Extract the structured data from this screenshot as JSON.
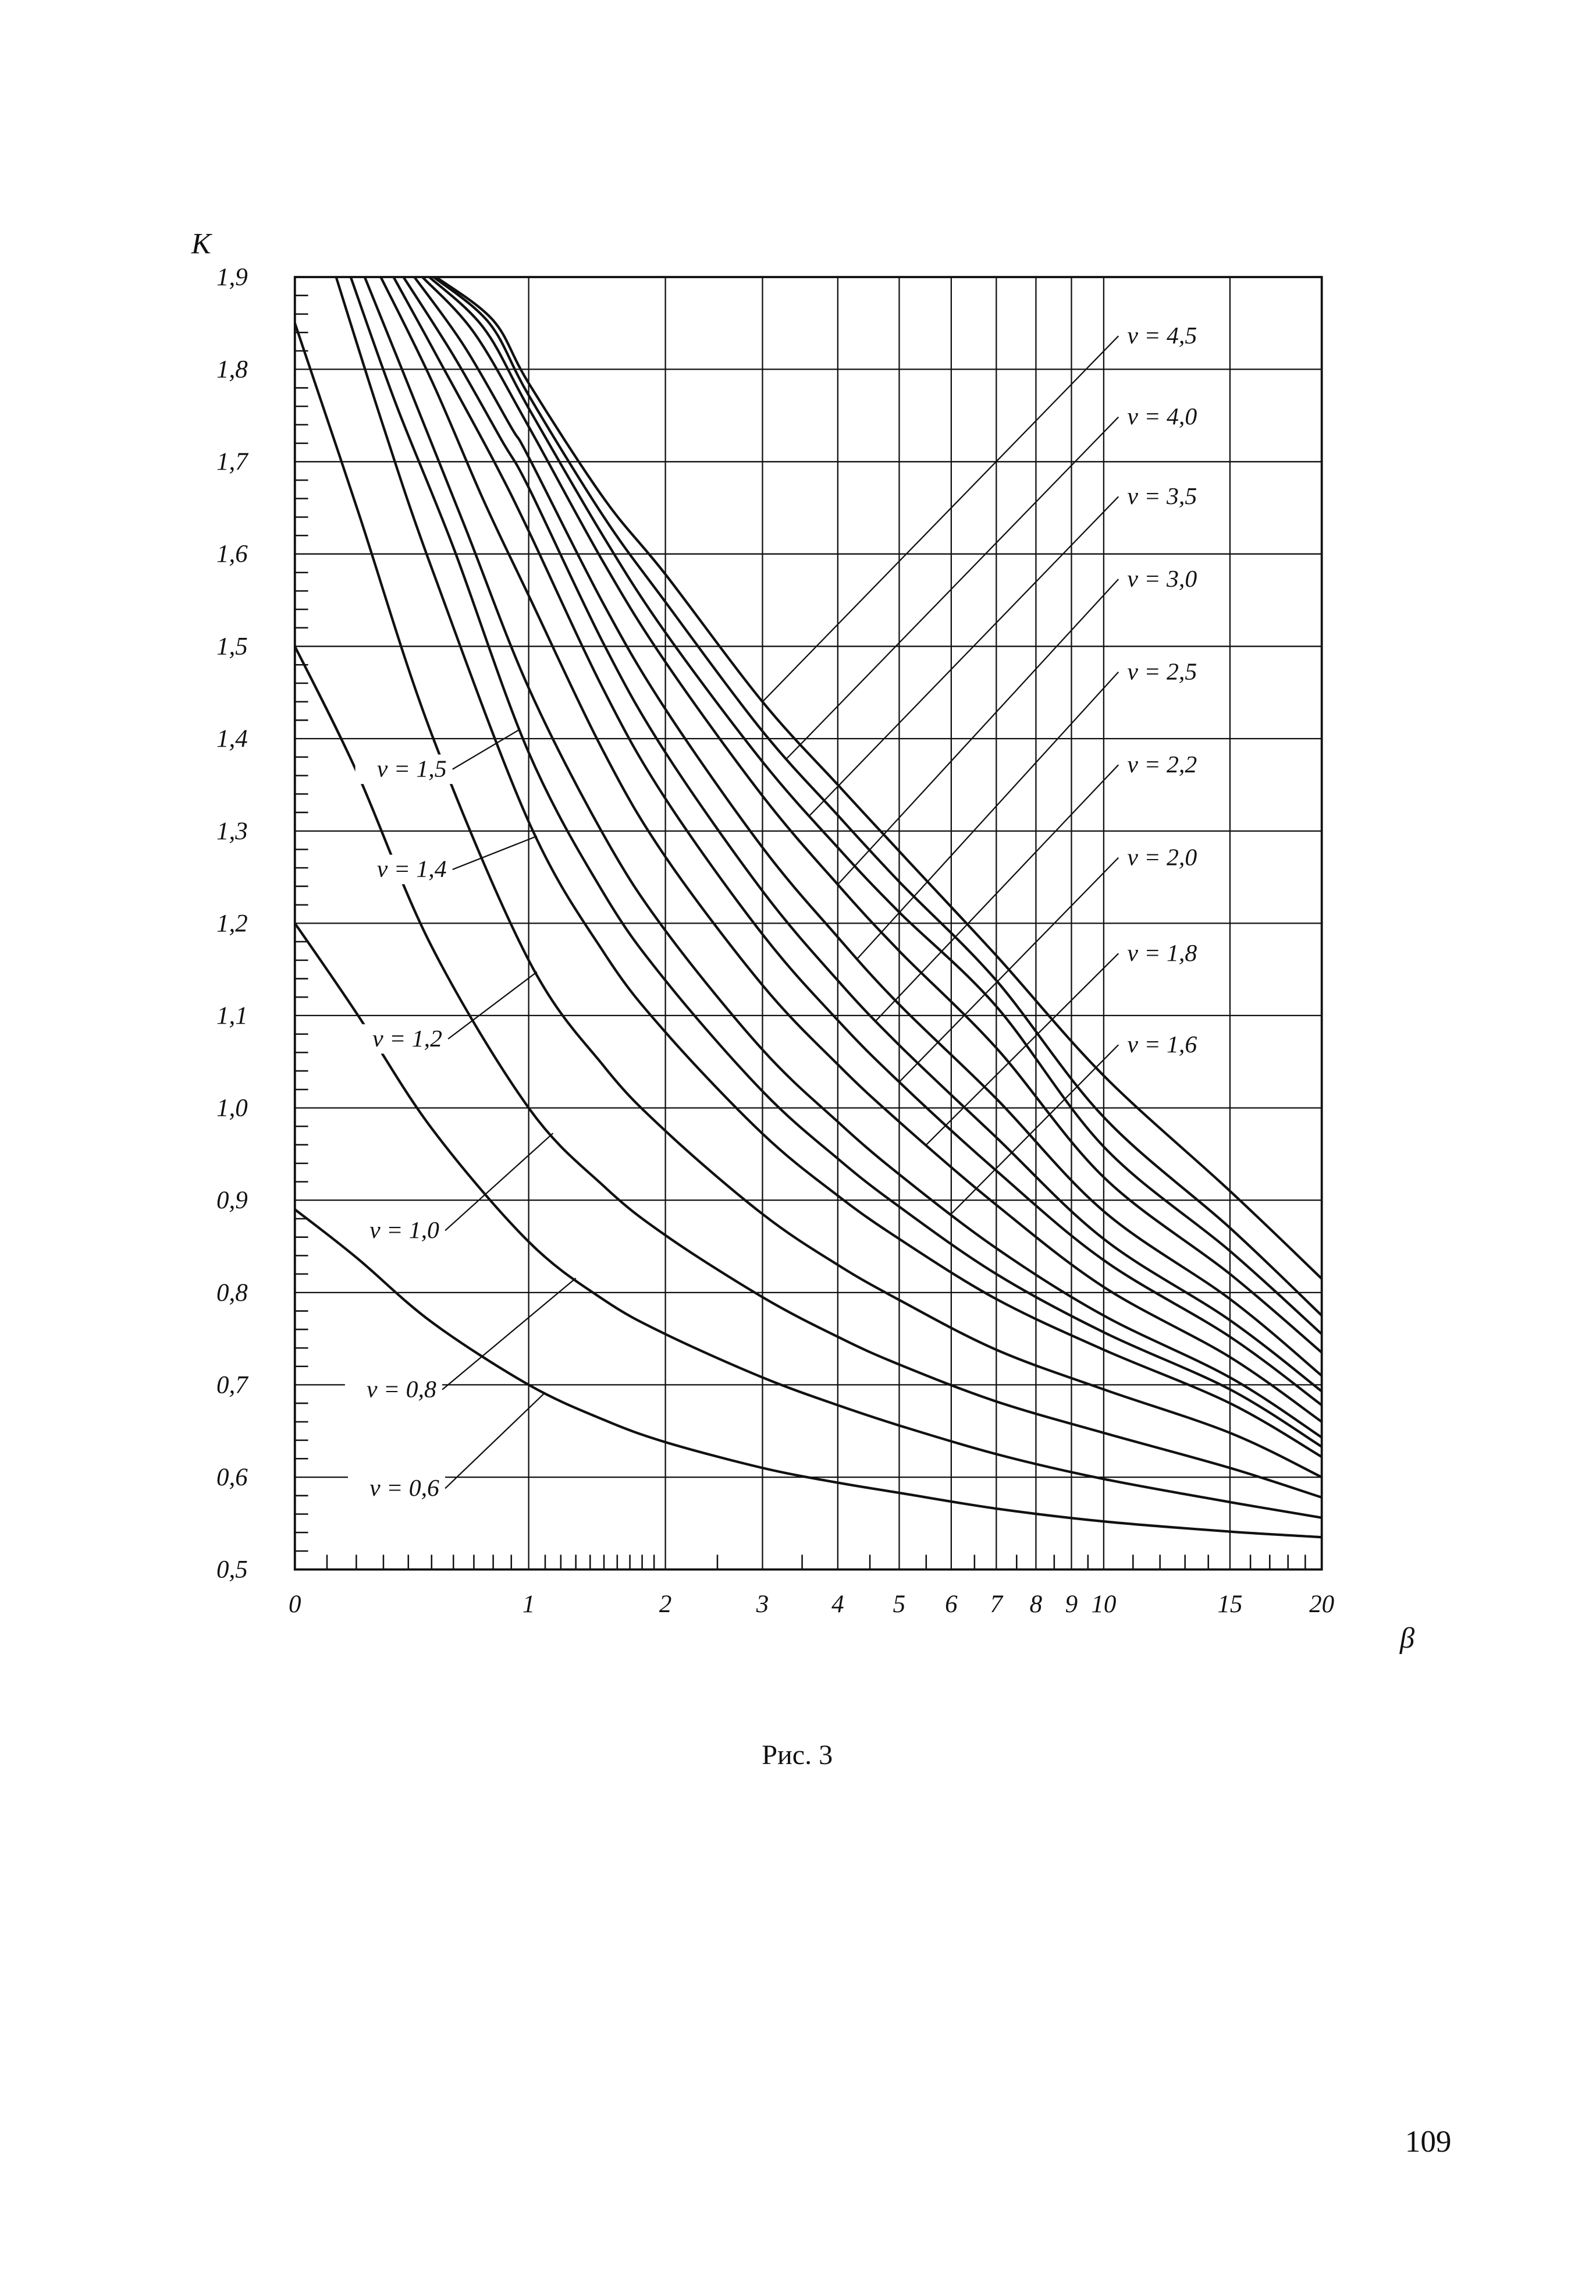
{
  "page": {
    "number": "109"
  },
  "chart_data": {
    "type": "line",
    "title": "Рис. 3",
    "xlabel": "β",
    "ylabel": "К",
    "line_color": "#111111",
    "grid": true,
    "x_scale": "log10(1+beta)",
    "x_axis": {
      "ticks": [
        0,
        1,
        2,
        3,
        4,
        5,
        6,
        7,
        8,
        9,
        10,
        15,
        20
      ],
      "tick_labels": [
        "0",
        "1",
        "2",
        "3",
        "4",
        "5",
        "6",
        "7",
        "8",
        "9",
        "10",
        "15",
        "20"
      ],
      "minor_ticks": [
        0.1,
        0.2,
        0.3,
        0.4,
        0.5,
        0.6,
        0.7,
        0.8,
        0.9,
        1.1,
        1.2,
        1.3,
        1.4,
        1.5,
        1.6,
        1.7,
        1.8,
        1.9,
        2.5,
        3.5,
        4.5,
        5.5,
        6.5,
        7.5,
        8.5,
        9.5,
        11,
        12,
        13,
        14,
        16,
        17,
        18,
        19
      ],
      "range": [
        0,
        20
      ]
    },
    "y_axis": {
      "ticks": [
        1.9,
        1.8,
        1.7,
        1.6,
        1.5,
        1.4,
        1.3,
        1.2,
        1.1,
        1.0,
        0.9,
        0.8,
        0.7,
        0.6,
        0.5
      ],
      "tick_labels": [
        "1,9",
        "1,8",
        "1,7",
        "1,6",
        "1,5",
        "1,4",
        "1,3",
        "1,2",
        "1,1",
        "1,0",
        "0,9",
        "0,8",
        "0,7",
        "0,6",
        "0,5"
      ],
      "minor_step": 0.02,
      "range": [
        0.5,
        1.9
      ]
    },
    "series": [
      {
        "name": "v = 0,6",
        "v": 0.6,
        "points": [
          [
            0,
            0.89
          ],
          [
            0.2,
            0.838
          ],
          [
            0.5,
            0.768
          ],
          [
            1,
            0.7
          ],
          [
            1.5,
            0.662
          ],
          [
            2,
            0.638
          ],
          [
            3,
            0.61
          ],
          [
            4,
            0.594
          ],
          [
            5,
            0.583
          ],
          [
            7,
            0.566
          ],
          [
            10,
            0.552
          ],
          [
            15,
            0.541
          ],
          [
            20,
            0.535
          ]
        ]
      },
      {
        "name": "v = 0,8",
        "v": 0.8,
        "points": [
          [
            0,
            1.2
          ],
          [
            0.2,
            1.103
          ],
          [
            0.5,
            0.978
          ],
          [
            1,
            0.855
          ],
          [
            1.5,
            0.792
          ],
          [
            2,
            0.755
          ],
          [
            3,
            0.708
          ],
          [
            4,
            0.678
          ],
          [
            5,
            0.656
          ],
          [
            7,
            0.625
          ],
          [
            10,
            0.598
          ],
          [
            15,
            0.573
          ],
          [
            20,
            0.556
          ]
        ]
      },
      {
        "name": "v = 1,0",
        "v": 1.0,
        "points": [
          [
            0,
            1.5
          ],
          [
            0.2,
            1.365
          ],
          [
            0.5,
            1.175
          ],
          [
            1,
            1.0
          ],
          [
            1.5,
            0.915
          ],
          [
            2,
            0.862
          ],
          [
            3,
            0.795
          ],
          [
            4,
            0.752
          ],
          [
            5,
            0.722
          ],
          [
            7,
            0.682
          ],
          [
            10,
            0.648
          ],
          [
            15,
            0.61
          ],
          [
            20,
            0.578
          ]
        ]
      },
      {
        "name": "v = 1,2",
        "v": 1.2,
        "points": [
          [
            0,
            1.85
          ],
          [
            0.2,
            1.652
          ],
          [
            0.5,
            1.405
          ],
          [
            1,
            1.16
          ],
          [
            1.5,
            1.045
          ],
          [
            2,
            0.975
          ],
          [
            3,
            0.885
          ],
          [
            4,
            0.83
          ],
          [
            5,
            0.792
          ],
          [
            7,
            0.738
          ],
          [
            10,
            0.695
          ],
          [
            15,
            0.648
          ],
          [
            20,
            0.6
          ]
        ]
      },
      {
        "name": "v = 1,4",
        "v": 1.4,
        "points": [
          [
            0.13,
            1.9
          ],
          [
            0.3,
            1.738
          ],
          [
            0.5,
            1.585
          ],
          [
            1,
            1.31
          ],
          [
            1.5,
            1.168
          ],
          [
            2,
            1.082
          ],
          [
            3,
            0.972
          ],
          [
            4,
            0.905
          ],
          [
            5,
            0.858
          ],
          [
            7,
            0.793
          ],
          [
            10,
            0.738
          ],
          [
            15,
            0.68
          ],
          [
            20,
            0.622
          ]
        ]
      },
      {
        "name": "v = 1,5",
        "v": 1.5,
        "points": [
          [
            0.18,
            1.9
          ],
          [
            0.35,
            1.762
          ],
          [
            0.6,
            1.607
          ],
          [
            1,
            1.385
          ],
          [
            1.5,
            1.232
          ],
          [
            2,
            1.138
          ],
          [
            3,
            1.018
          ],
          [
            4,
            0.945
          ],
          [
            5,
            0.893
          ],
          [
            7,
            0.82
          ],
          [
            10,
            0.757
          ],
          [
            15,
            0.695
          ],
          [
            20,
            0.633
          ]
        ]
      },
      {
        "name": "v = 1,6",
        "v": 1.6,
        "points": [
          [
            0.23,
            1.9
          ],
          [
            0.4,
            1.783
          ],
          [
            0.65,
            1.633
          ],
          [
            1,
            1.455
          ],
          [
            1.5,
            1.295
          ],
          [
            2,
            1.192
          ],
          [
            3,
            1.063
          ],
          [
            4,
            0.985
          ],
          [
            5,
            0.928
          ],
          [
            7,
            0.848
          ],
          [
            10,
            0.775
          ],
          [
            15,
            0.708
          ],
          [
            20,
            0.643
          ]
        ]
      },
      {
        "name": "v = 1,8",
        "v": 1.8,
        "points": [
          [
            0.29,
            1.9
          ],
          [
            0.5,
            1.788
          ],
          [
            0.75,
            1.658
          ],
          [
            1,
            1.555
          ],
          [
            1.5,
            1.385
          ],
          [
            2,
            1.272
          ],
          [
            3,
            1.133
          ],
          [
            4,
            1.047
          ],
          [
            5,
            0.985
          ],
          [
            7,
            0.895
          ],
          [
            10,
            0.806
          ],
          [
            15,
            0.73
          ],
          [
            20,
            0.66
          ]
        ]
      },
      {
        "name": "v = 2,0",
        "v": 2.0,
        "points": [
          [
            0.34,
            1.9
          ],
          [
            0.55,
            1.803
          ],
          [
            0.8,
            1.702
          ],
          [
            1,
            1.625
          ],
          [
            1.5,
            1.452
          ],
          [
            2,
            1.335
          ],
          [
            3,
            1.188
          ],
          [
            4,
            1.095
          ],
          [
            5,
            1.028
          ],
          [
            7,
            0.932
          ],
          [
            10,
            0.835
          ],
          [
            15,
            0.752
          ],
          [
            20,
            0.678
          ]
        ]
      },
      {
        "name": "v = 2,2",
        "v": 2.2,
        "points": [
          [
            0.38,
            1.9
          ],
          [
            0.6,
            1.815
          ],
          [
            0.85,
            1.722
          ],
          [
            1,
            1.672
          ],
          [
            1.5,
            1.502
          ],
          [
            2,
            1.385
          ],
          [
            3,
            1.235
          ],
          [
            4,
            1.138
          ],
          [
            5,
            1.068
          ],
          [
            7,
            0.968
          ],
          [
            10,
            0.858
          ],
          [
            15,
            0.77
          ],
          [
            20,
            0.693
          ]
        ]
      },
      {
        "name": "v = 2,5",
        "v": 2.5,
        "points": [
          [
            0.425,
            1.9
          ],
          [
            0.65,
            1.826
          ],
          [
            0.9,
            1.737
          ],
          [
            1,
            1.705
          ],
          [
            1.5,
            1.545
          ],
          [
            2,
            1.432
          ],
          [
            3,
            1.282
          ],
          [
            4,
            1.185
          ],
          [
            5,
            1.112
          ],
          [
            7,
            1.01
          ],
          [
            10,
            0.888
          ],
          [
            15,
            0.793
          ],
          [
            20,
            0.71
          ]
        ]
      },
      {
        "name": "v = 3,0",
        "v": 3.0,
        "points": [
          [
            0.46,
            1.9
          ],
          [
            0.7,
            1.84
          ],
          [
            1,
            1.738
          ],
          [
            1.5,
            1.59
          ],
          [
            2,
            1.483
          ],
          [
            3,
            1.338
          ],
          [
            4,
            1.242
          ],
          [
            5,
            1.17
          ],
          [
            7,
            1.065
          ],
          [
            10,
            0.925
          ],
          [
            15,
            0.82
          ],
          [
            20,
            0.735
          ]
        ]
      },
      {
        "name": "v = 3,5",
        "v": 3.5,
        "points": [
          [
            0.49,
            1.9
          ],
          [
            0.75,
            1.845
          ],
          [
            1,
            1.758
          ],
          [
            1.5,
            1.618
          ],
          [
            2,
            1.515
          ],
          [
            3,
            1.375
          ],
          [
            4,
            1.282
          ],
          [
            5,
            1.212
          ],
          [
            7,
            1.11
          ],
          [
            10,
            0.958
          ],
          [
            15,
            0.845
          ],
          [
            20,
            0.755
          ]
        ]
      },
      {
        "name": "v = 4,0",
        "v": 4.0,
        "points": [
          [
            0.51,
            1.9
          ],
          [
            0.78,
            1.85
          ],
          [
            1,
            1.772
          ],
          [
            1.5,
            1.64
          ],
          [
            2,
            1.548
          ],
          [
            3,
            1.408
          ],
          [
            4,
            1.317
          ],
          [
            5,
            1.245
          ],
          [
            7,
            1.138
          ],
          [
            10,
            0.99
          ],
          [
            15,
            0.87
          ],
          [
            20,
            0.775
          ]
        ]
      },
      {
        "name": "v = 4,5",
        "v": 4.5,
        "points": [
          [
            0.52,
            1.9
          ],
          [
            0.8,
            1.853
          ],
          [
            1,
            1.785
          ],
          [
            1.5,
            1.66
          ],
          [
            2,
            1.578
          ],
          [
            3,
            1.44
          ],
          [
            4,
            1.35
          ],
          [
            5,
            1.278
          ],
          [
            7,
            1.165
          ],
          [
            10,
            1.035
          ],
          [
            15,
            0.91
          ],
          [
            20,
            0.815
          ]
        ]
      }
    ],
    "left_labels": [
      {
        "text": "v = 1,5",
        "v": 1.5,
        "x": 303,
        "y": 527,
        "target_beta": 0.95
      },
      {
        "text": "v = 1,4",
        "v": 1.4,
        "x": 303,
        "y": 595,
        "target_beta": 1.05
      },
      {
        "text": "v = 1,2",
        "v": 1.2,
        "x": 300,
        "y": 710,
        "target_beta": 1.05
      },
      {
        "text": "v = 1,0",
        "v": 1.0,
        "x": 298,
        "y": 840,
        "target_beta": 1.15
      },
      {
        "text": "v = 0,8",
        "v": 0.8,
        "x": 296,
        "y": 948,
        "target_beta": 1.3
      },
      {
        "text": "v = 0,6",
        "v": 0.6,
        "x": 298,
        "y": 1015,
        "target_beta": 1.1
      }
    ],
    "right_labels": [
      {
        "text": "v = 4,5",
        "v": 4.5,
        "x": 765,
        "y": 233,
        "target_beta": 3.0
      },
      {
        "text": "v = 4,0",
        "v": 4.0,
        "x": 765,
        "y": 288,
        "target_beta": 3.3
      },
      {
        "text": "v = 3,5",
        "v": 3.5,
        "x": 765,
        "y": 342,
        "target_beta": 3.6
      },
      {
        "text": "v = 3,0",
        "v": 3.0,
        "x": 765,
        "y": 398,
        "target_beta": 4.0
      },
      {
        "text": "v = 2,5",
        "v": 2.5,
        "x": 765,
        "y": 461,
        "target_beta": 4.3
      },
      {
        "text": "v = 2,2",
        "v": 2.2,
        "x": 765,
        "y": 524,
        "target_beta": 4.6
      },
      {
        "text": "v = 2,0",
        "v": 2.0,
        "x": 765,
        "y": 587,
        "target_beta": 5.0
      },
      {
        "text": "v = 1,8",
        "v": 1.8,
        "x": 765,
        "y": 652,
        "target_beta": 5.5
      },
      {
        "text": "v = 1,6",
        "v": 1.6,
        "x": 765,
        "y": 714,
        "target_beta": 6.0
      }
    ]
  }
}
